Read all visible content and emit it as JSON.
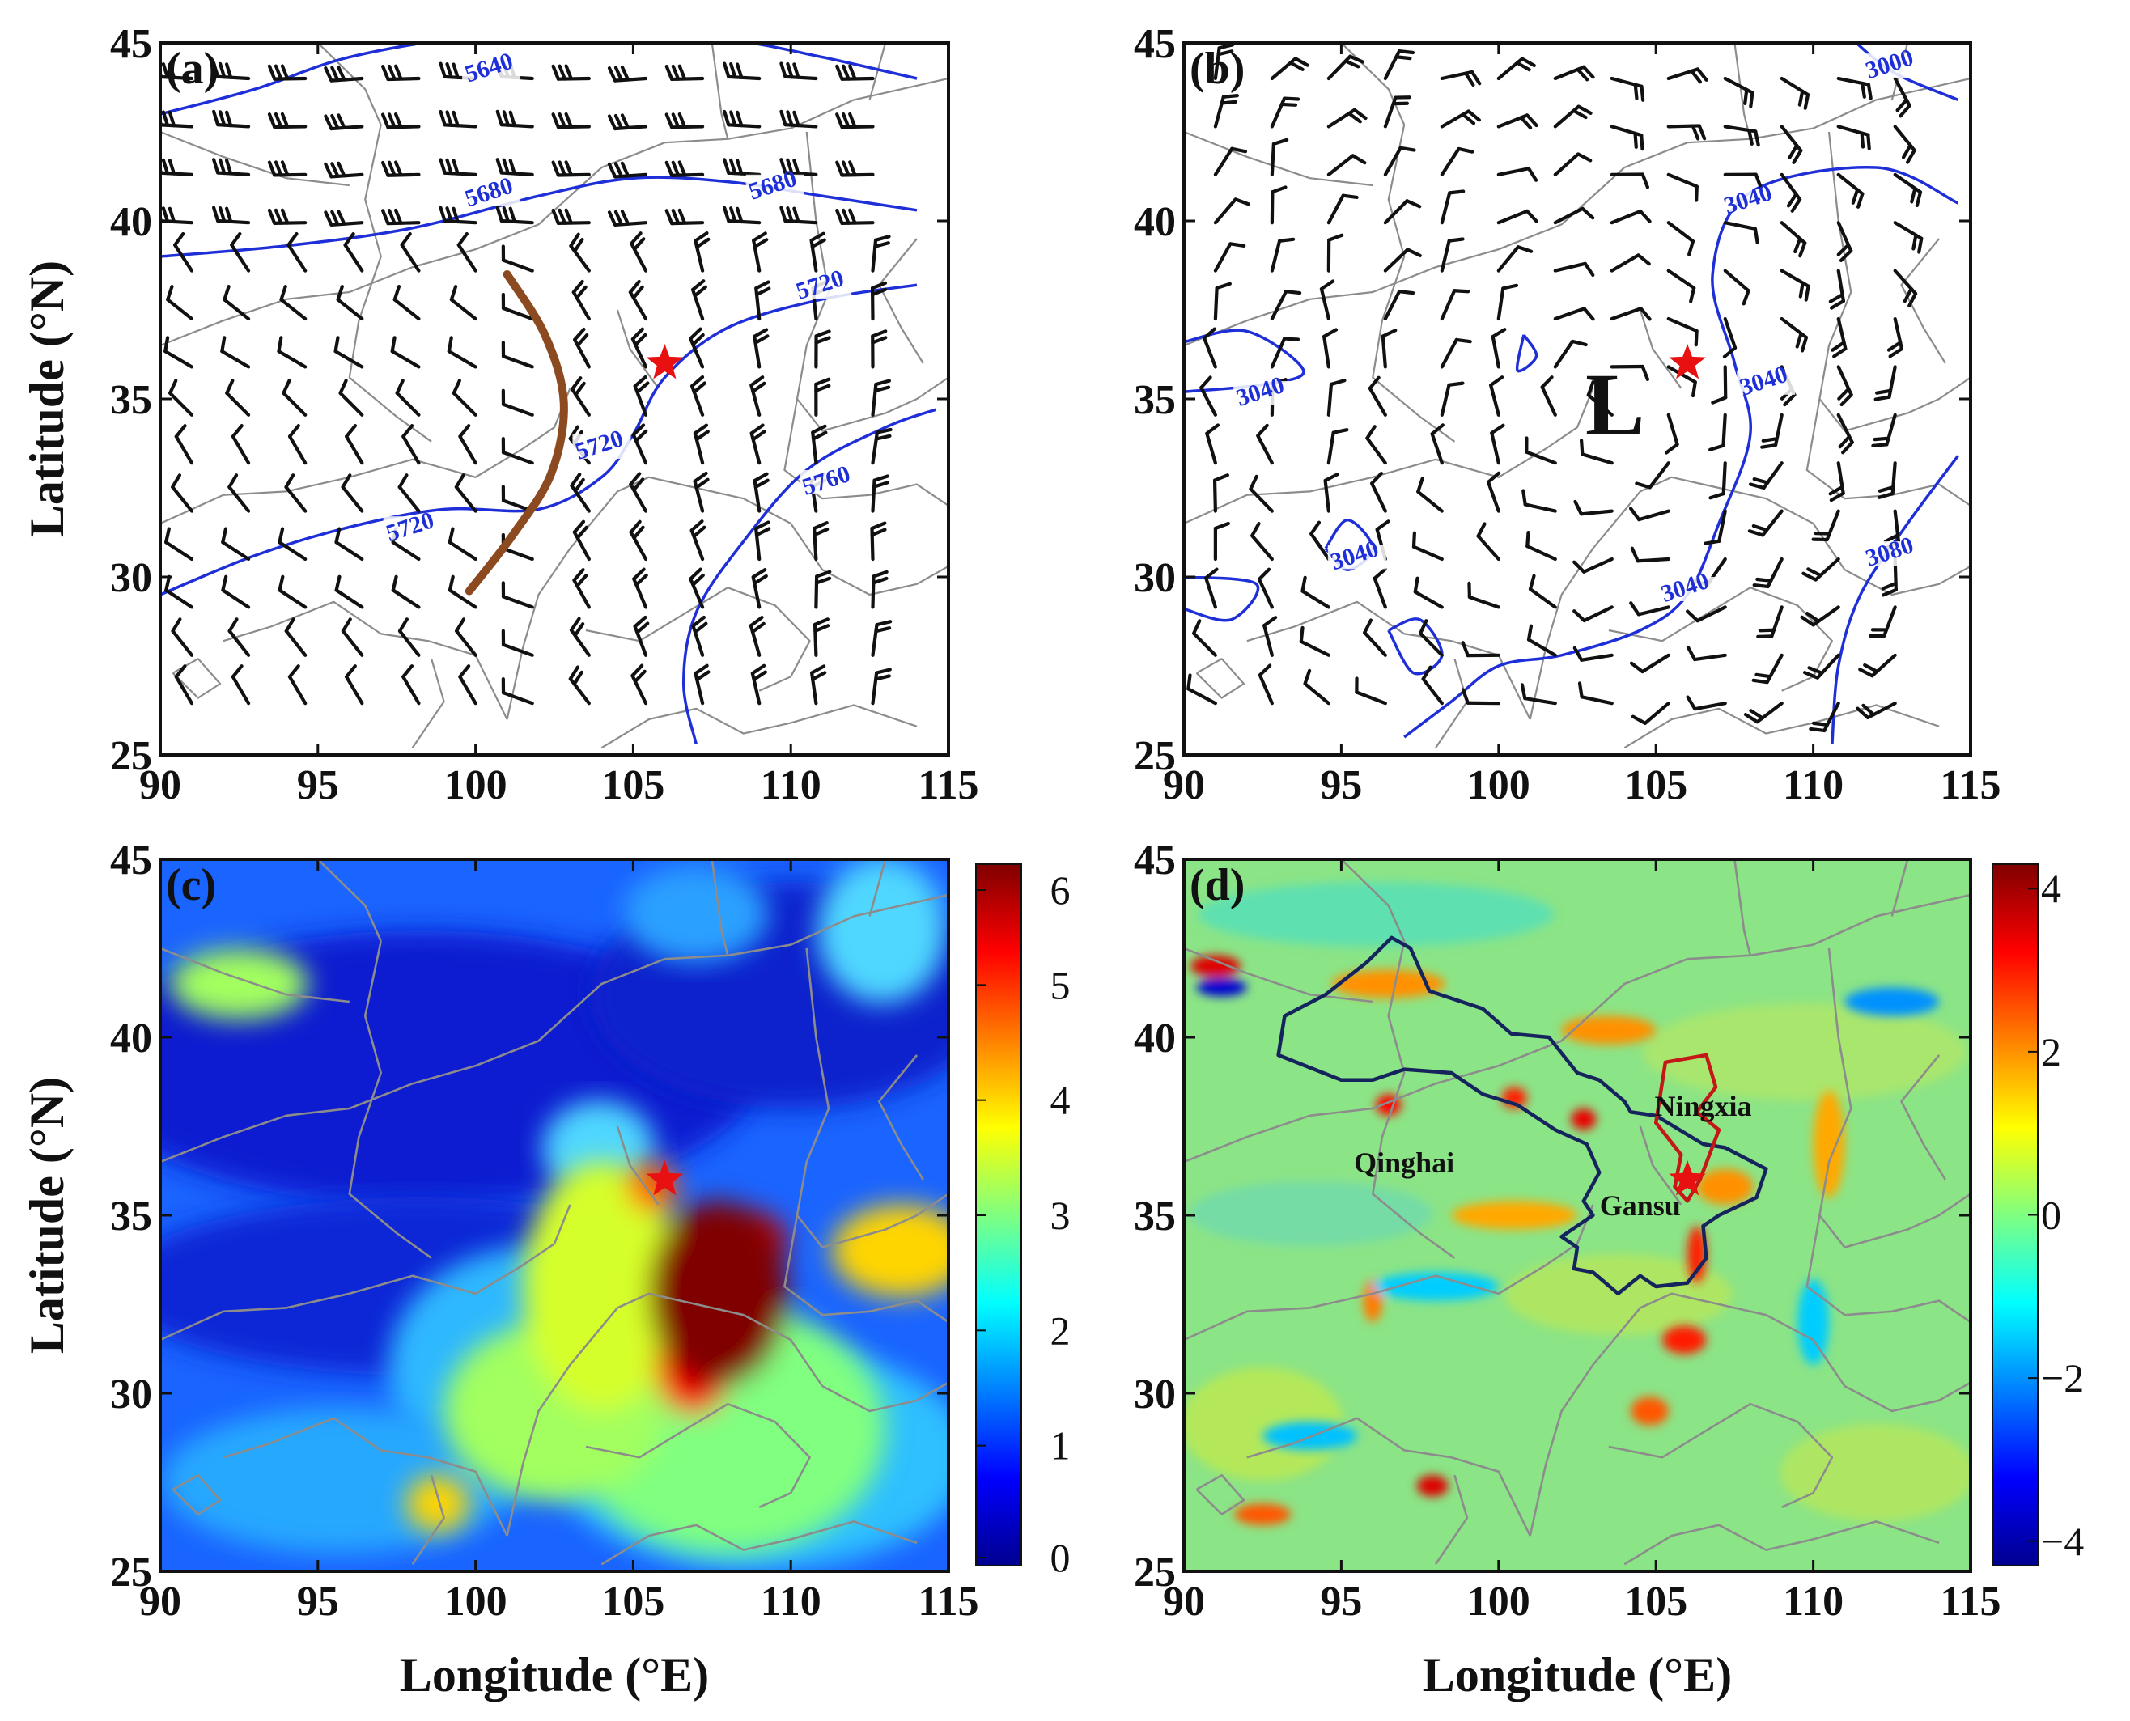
{
  "x_axis": {
    "label": "Longitude (°E)",
    "ticks": [
      "90",
      "95",
      "100",
      "105",
      "110",
      "115"
    ],
    "range": [
      90,
      115
    ]
  },
  "y_axis": {
    "label": "Latitude (°N)",
    "ticks": [
      "25",
      "30",
      "35",
      "40",
      "45"
    ],
    "range": [
      25,
      45
    ]
  },
  "panels": {
    "a": {
      "label": "(a)",
      "contours": [
        {
          "text": "5640",
          "points": [
            [
              90,
              43
            ],
            [
              93,
              43.7
            ],
            [
              96,
              44.6
            ],
            [
              100,
              45.2
            ],
            [
              104,
              45.4
            ],
            [
              108,
              45.1
            ],
            [
              111,
              44.6
            ],
            [
              114,
              44
            ]
          ]
        },
        {
          "text": "5680",
          "points": [
            [
              90,
              39
            ],
            [
              94,
              39.3
            ],
            [
              98,
              39.8
            ],
            [
              102,
              40.7
            ],
            [
              105,
              41.2
            ],
            [
              108,
              41.1
            ],
            [
              111,
              40.7
            ],
            [
              114,
              40.3
            ]
          ]
        },
        {
          "text": "5720",
          "points": [
            [
              90,
              29.5
            ],
            [
              93,
              30.6
            ],
            [
              96,
              31.4
            ],
            [
              99,
              31.9
            ],
            [
              102,
              31.9
            ],
            [
              104,
              32.8
            ],
            [
              105,
              34
            ],
            [
              106,
              35.6
            ],
            [
              108,
              37
            ],
            [
              111,
              37.8
            ],
            [
              114,
              38.2
            ]
          ]
        },
        {
          "text": "5760",
          "points": [
            [
              107,
              25.3
            ],
            [
              106.6,
              27
            ],
            [
              107,
              29
            ],
            [
              108.5,
              31
            ],
            [
              110.5,
              33
            ],
            [
              113,
              34.2
            ],
            [
              114.6,
              34.7
            ]
          ]
        }
      ],
      "contour_labels": [
        {
          "text": "5640",
          "lon": 100.5,
          "lat": 44.1
        },
        {
          "text": "5640",
          "lon": 107.5,
          "lat": 45.4
        },
        {
          "text": "5680",
          "lon": 100.5,
          "lat": 40.6
        },
        {
          "text": "5680",
          "lon": 109.5,
          "lat": 40.8
        },
        {
          "text": "5720",
          "lon": 98,
          "lat": 31.2
        },
        {
          "text": "5720",
          "lon": 104,
          "lat": 33.5
        },
        {
          "text": "5720",
          "lon": 111,
          "lat": 38
        },
        {
          "text": "5760",
          "lon": 111.2,
          "lat": 32.5
        }
      ],
      "trough_line": [
        [
          101,
          38.5
        ],
        [
          102.2,
          36.8
        ],
        [
          102.8,
          34.9
        ],
        [
          102.4,
          32.9
        ],
        [
          101.2,
          31.2
        ],
        [
          99.8,
          29.6
        ]
      ],
      "wind_regime": "westerly",
      "star": {
        "lon": 106,
        "lat": 36
      }
    },
    "b": {
      "label": "(b)",
      "low_marker": "L",
      "low_position": {
        "lon": 103.7,
        "lat": 34.8
      },
      "contours": [
        {
          "text": "3000",
          "points": [
            [
              111,
              45.3
            ],
            [
              112.5,
              44.2
            ],
            [
              114.6,
              43.4
            ]
          ]
        },
        {
          "text": "3040",
          "points": [
            [
              114.6,
              40.5
            ],
            [
              112,
              41.5
            ],
            [
              108,
              40.8
            ],
            [
              106.8,
              38.5
            ],
            [
              107.5,
              36
            ],
            [
              108,
              34
            ],
            [
              107,
              31.5
            ],
            [
              106,
              29.5
            ],
            [
              104.5,
              28.5
            ],
            [
              102,
              27.8
            ],
            [
              100,
              27.5
            ],
            [
              98.5,
              26.5
            ],
            [
              97,
              25.5
            ]
          ]
        },
        {
          "text": "3040",
          "points": [
            [
              90,
              36.6
            ],
            [
              92,
              36.9
            ],
            [
              93.8,
              35.8
            ],
            [
              92.5,
              35.4
            ],
            [
              90,
              35.2
            ]
          ]
        },
        {
          "text": "3040",
          "points": [
            [
              94.5,
              30.8
            ],
            [
              95.2,
              31.6
            ],
            [
              96,
              30.8
            ],
            [
              95.2,
              30.2
            ],
            [
              94.5,
              30.8
            ]
          ]
        },
        {
          "text": "3040",
          "points": [
            [
              96.5,
              28.5
            ],
            [
              97.5,
              28.8
            ],
            [
              98.2,
              27.8
            ],
            [
              97.3,
              27.3
            ],
            [
              96.5,
              28.5
            ]
          ]
        },
        {
          "text": "3040",
          "points": [
            [
              90,
              29.1
            ],
            [
              91.5,
              28.8
            ],
            [
              92.3,
              29.8
            ],
            [
              90,
              30
            ]
          ]
        },
        {
          "text": "3040",
          "points": [
            [
              100.8,
              36.8
            ],
            [
              101.2,
              36.2
            ],
            [
              100.6,
              35.8
            ],
            [
              100.8,
              36.8
            ]
          ]
        },
        {
          "text": "3080",
          "points": [
            [
              114.6,
              33.4
            ],
            [
              113,
              31.5
            ],
            [
              111.5,
              29.5
            ],
            [
              110.8,
              27.5
            ],
            [
              110.6,
              25.3
            ]
          ]
        }
      ],
      "contour_labels": [
        {
          "text": "3000",
          "lon": 112.5,
          "lat": 44.2
        },
        {
          "text": "3040",
          "lon": 108,
          "lat": 40.4
        },
        {
          "text": "3040",
          "lon": 108.5,
          "lat": 35.3
        },
        {
          "text": "3040",
          "lon": 106,
          "lat": 29.5
        },
        {
          "text": "3040",
          "lon": 92.5,
          "lat": 35
        },
        {
          "text": "3040",
          "lon": 95.5,
          "lat": 30.4
        },
        {
          "text": "3080",
          "lon": 112.5,
          "lat": 30.5
        }
      ],
      "wind_regime": "cyclonic",
      "star": {
        "lon": 106,
        "lat": 36
      }
    },
    "c": {
      "label": "(c)",
      "colorbar": {
        "ticks": [
          "0",
          "1",
          "2",
          "3",
          "4",
          "5",
          "6"
        ],
        "range": [
          0,
          6
        ]
      },
      "blobs": [
        {
          "lon": 107.7,
          "lat": 32.8,
          "rx": 2.2,
          "ry": 2.6,
          "v": 6
        },
        {
          "lon": 108.3,
          "lat": 34.3,
          "rx": 1.6,
          "ry": 0.9,
          "v": 5.6
        },
        {
          "lon": 106.9,
          "lat": 30.7,
          "rx": 1.2,
          "ry": 1.3,
          "v": 5.3
        },
        {
          "lon": 105.6,
          "lat": 35.8,
          "rx": 0.8,
          "ry": 0.7,
          "v": 4.7
        },
        {
          "lon": 113.5,
          "lat": 34,
          "rx": 2.2,
          "ry": 1.3,
          "v": 4
        },
        {
          "lon": 104,
          "lat": 33,
          "rx": 2.5,
          "ry": 3.5,
          "v": 3.5
        },
        {
          "lon": 102.5,
          "lat": 29.5,
          "rx": 3.5,
          "ry": 2.5,
          "v": 3.2
        },
        {
          "lon": 108,
          "lat": 29,
          "rx": 5,
          "ry": 3.5,
          "v": 3
        },
        {
          "lon": 98.8,
          "lat": 26.9,
          "rx": 1,
          "ry": 0.8,
          "v": 4
        },
        {
          "lon": 92.5,
          "lat": 41.5,
          "rx": 2.2,
          "ry": 1,
          "v": 3.2
        }
      ],
      "star": {
        "lon": 106,
        "lat": 36
      }
    },
    "d": {
      "label": "(d)",
      "colorbar": {
        "ticks": [
          "4",
          "2",
          "0",
          "−2",
          "−4"
        ],
        "range": [
          -4.3,
          4.3
        ]
      },
      "region_labels": [
        {
          "text": "Qinghai",
          "lon": 97,
          "lat": 36.2
        },
        {
          "text": "Gansu",
          "lon": 104.5,
          "lat": 35
        },
        {
          "text": "Ningxia",
          "lon": 106.5,
          "lat": 37.8
        }
      ],
      "gansu_outline": [
        [
          93,
          39.5
        ],
        [
          93.2,
          40.6
        ],
        [
          94.5,
          41.2
        ],
        [
          95.8,
          42.1
        ],
        [
          96.6,
          42.8
        ],
        [
          97.2,
          42.5
        ],
        [
          97.8,
          41.3
        ],
        [
          99.5,
          40.8
        ],
        [
          100.4,
          40.1
        ],
        [
          101.6,
          40
        ],
        [
          102.5,
          39
        ],
        [
          103.2,
          38.8
        ],
        [
          104,
          38.2
        ],
        [
          104.2,
          37.9
        ],
        [
          105,
          37.8
        ],
        [
          106.5,
          37
        ],
        [
          107.2,
          36.9
        ],
        [
          108.5,
          36.3
        ],
        [
          108.2,
          35.5
        ],
        [
          107,
          35
        ],
        [
          106.5,
          34.7
        ],
        [
          106.6,
          33.8
        ],
        [
          106,
          33.1
        ],
        [
          105,
          33
        ],
        [
          104.5,
          33.3
        ],
        [
          103.8,
          32.8
        ],
        [
          103,
          33.4
        ],
        [
          102.4,
          33.5
        ],
        [
          102.5,
          34.1
        ],
        [
          102,
          34.4
        ],
        [
          103,
          35
        ],
        [
          102.7,
          35.4
        ],
        [
          103.2,
          36.2
        ],
        [
          102.8,
          37
        ],
        [
          101.8,
          37.4
        ],
        [
          100.6,
          38.1
        ],
        [
          99.5,
          38.4
        ],
        [
          98.5,
          39
        ],
        [
          97,
          39.1
        ],
        [
          96,
          38.8
        ],
        [
          95,
          38.8
        ],
        [
          93,
          39.5
        ]
      ],
      "ningxia_outline": [
        [
          105.3,
          39.3
        ],
        [
          106.6,
          39.5
        ],
        [
          106.9,
          38.6
        ],
        [
          106.3,
          37.9
        ],
        [
          107,
          37.4
        ],
        [
          106.4,
          36
        ],
        [
          106,
          35.4
        ],
        [
          105.6,
          35.8
        ],
        [
          105.8,
          36.7
        ],
        [
          105,
          37.6
        ],
        [
          105.3,
          39.3
        ]
      ],
      "blobs": [
        {
          "lon": 107.2,
          "lat": 35.8,
          "rx": 0.9,
          "ry": 0.5,
          "v": 2
        },
        {
          "lon": 106.3,
          "lat": 33.9,
          "rx": 0.3,
          "ry": 0.8,
          "v": 3
        },
        {
          "lon": 105.9,
          "lat": 31.5,
          "rx": 0.7,
          "ry": 0.4,
          "v": 3
        },
        {
          "lon": 104.8,
          "lat": 29.5,
          "rx": 0.6,
          "ry": 0.4,
          "v": 2.5
        },
        {
          "lon": 102.7,
          "lat": 37.7,
          "rx": 0.4,
          "ry": 0.3,
          "v": 3.4
        },
        {
          "lon": 96.5,
          "lat": 38.1,
          "rx": 0.4,
          "ry": 0.3,
          "v": 3.2
        },
        {
          "lon": 100.5,
          "lat": 38.3,
          "rx": 0.4,
          "ry": 0.3,
          "v": 3
        },
        {
          "lon": 96,
          "lat": 32.6,
          "rx": 0.3,
          "ry": 0.6,
          "v": 2.2
        },
        {
          "lon": 97.9,
          "lat": 27.4,
          "rx": 0.5,
          "ry": 0.3,
          "v": 3.5
        },
        {
          "lon": 92.5,
          "lat": 26.6,
          "rx": 0.9,
          "ry": 0.3,
          "v": 2.5
        },
        {
          "lon": 91,
          "lat": 42,
          "rx": 0.8,
          "ry": 0.3,
          "v": 3.5
        },
        {
          "lon": 91.2,
          "lat": 41.4,
          "rx": 0.8,
          "ry": 0.25,
          "v": -3.6
        },
        {
          "lon": 103.5,
          "lat": 40.2,
          "rx": 1.5,
          "ry": 0.4,
          "v": 2
        },
        {
          "lon": 112.5,
          "lat": 41,
          "rx": 1.5,
          "ry": 0.4,
          "v": -2
        },
        {
          "lon": 96.5,
          "lat": 41.5,
          "rx": 1.8,
          "ry": 0.4,
          "v": 2
        },
        {
          "lon": 94,
          "lat": 28.8,
          "rx": 1.5,
          "ry": 0.4,
          "v": -1.6
        },
        {
          "lon": 100.5,
          "lat": 35,
          "rx": 2,
          "ry": 0.4,
          "v": 1.8
        },
        {
          "lon": 98,
          "lat": 33,
          "rx": 2,
          "ry": 0.4,
          "v": -1.5
        },
        {
          "lon": 110.5,
          "lat": 37,
          "rx": 0.5,
          "ry": 1.5,
          "v": 1.8
        },
        {
          "lon": 110,
          "lat": 32,
          "rx": 0.5,
          "ry": 1.2,
          "v": -1.5
        }
      ],
      "star": {
        "lon": 106,
        "lat": 36
      }
    }
  },
  "colors": {
    "contour": "#1f2fd8",
    "trough": "#8b4a1f",
    "star": "#e81010",
    "low": "#e81010",
    "boundary": "#8c8c8c",
    "gansu": "#16245e",
    "ningxia": "#c41818"
  }
}
